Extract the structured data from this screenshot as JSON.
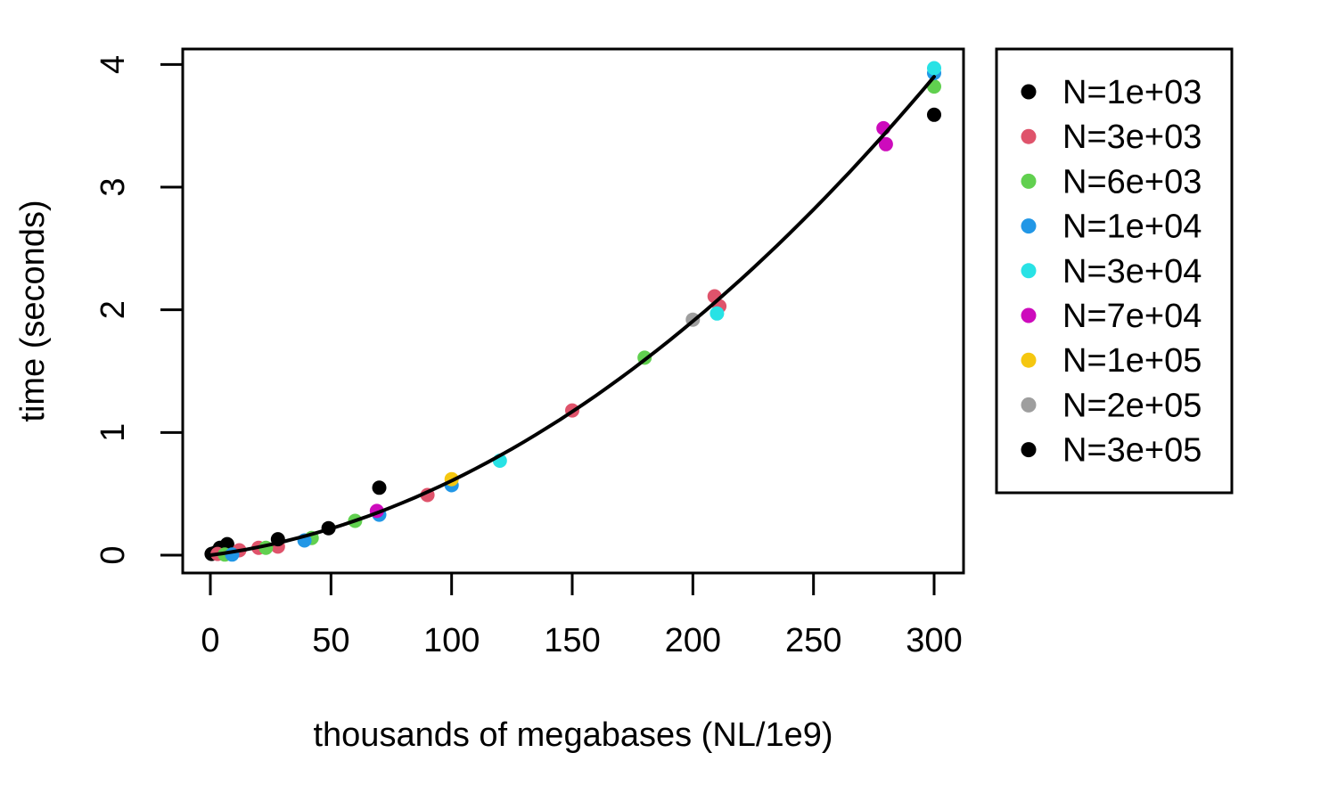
{
  "figure": {
    "background": "#ffffff",
    "foreground": "#000000"
  },
  "chart_data": {
    "type": "scatter",
    "title": "",
    "xlabel": "thousands of megabases (NL/1e9)",
    "ylabel": "time (seconds)",
    "xlim": [
      -11.5,
      312
    ],
    "ylim": [
      -0.15,
      4.13
    ],
    "x_ticks": [
      0,
      50,
      100,
      150,
      200,
      250,
      300
    ],
    "y_ticks": [
      0,
      1,
      2,
      3,
      4
    ],
    "grid": false,
    "legend": {
      "position": "right-outside",
      "border": true
    },
    "fit_curve": {
      "type": "quadratic",
      "formula": "time = 0.0026*x + 3.467e-5*x^2",
      "a": 0.0026,
      "b": 3.467e-05,
      "x_range": [
        0,
        300
      ],
      "color": "#000000"
    },
    "series": [
      {
        "name": "N=1e+03",
        "color": "#000000",
        "points": [
          [
            0.5,
            0.01
          ],
          [
            2,
            0.02
          ],
          [
            4,
            0.06
          ],
          [
            7,
            0.09
          ]
        ]
      },
      {
        "name": "N=3e+03",
        "color": "#DF536B",
        "points": [
          [
            3,
            0.01
          ],
          [
            12,
            0.04
          ],
          [
            20,
            0.06
          ],
          [
            28,
            0.07
          ],
          [
            90,
            0.49
          ],
          [
            150,
            1.18
          ],
          [
            209,
            2.11
          ],
          [
            211,
            2.03
          ]
        ]
      },
      {
        "name": "N=6e+03",
        "color": "#61D04F",
        "points": [
          [
            6,
            0.005
          ],
          [
            23,
            0.06
          ],
          [
            42,
            0.14
          ],
          [
            60,
            0.28
          ],
          [
            180,
            1.61
          ],
          [
            300,
            3.82
          ]
        ]
      },
      {
        "name": "N=1e+04",
        "color": "#2297E6",
        "points": [
          [
            9,
            0.005
          ],
          [
            39,
            0.12
          ],
          [
            70,
            0.33
          ],
          [
            100,
            0.57
          ],
          [
            300,
            3.93
          ]
        ]
      },
      {
        "name": "N=3e+04",
        "color": "#28E2E5",
        "points": [
          [
            120,
            0.77
          ],
          [
            210,
            1.97
          ],
          [
            300,
            3.97
          ]
        ]
      },
      {
        "name": "N=7e+04",
        "color": "#CD0BBC",
        "points": [
          [
            69,
            0.36
          ],
          [
            279,
            3.48
          ],
          [
            280,
            3.35
          ]
        ]
      },
      {
        "name": "N=1e+05",
        "color": "#F5C710",
        "points": [
          [
            100,
            0.62
          ]
        ]
      },
      {
        "name": "N=2e+05",
        "color": "#9E9E9E",
        "points": [
          [
            200,
            1.92
          ]
        ]
      },
      {
        "name": "N=3e+05",
        "color": "#000000",
        "points": [
          [
            28,
            0.13
          ],
          [
            49,
            0.22
          ],
          [
            70,
            0.55
          ],
          [
            300,
            3.59
          ]
        ]
      }
    ]
  }
}
